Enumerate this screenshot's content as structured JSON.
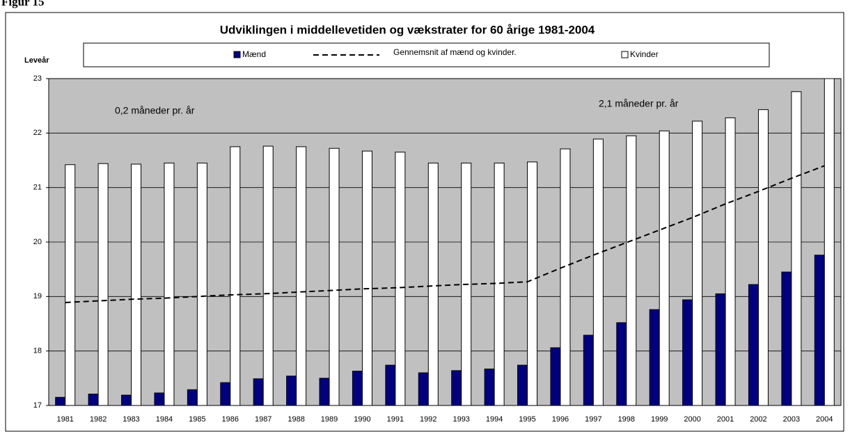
{
  "figure_label": "Figur 15",
  "chart_data": {
    "type": "bar",
    "title": "Udviklingen i middellevetiden og vækstrater for 60 årige 1981-2004",
    "y_label": "Leveår",
    "annotations": [
      "0,2 måneder pr. år",
      "2,1 måneder pr. år"
    ],
    "categories": [
      "1981",
      "1982",
      "1983",
      "1984",
      "1985",
      "1986",
      "1987",
      "1988",
      "1989",
      "1990",
      "1991",
      "1992",
      "1993",
      "1994",
      "1995",
      "1996",
      "1997",
      "1998",
      "1999",
      "2000",
      "2001",
      "2002",
      "2003",
      "2004"
    ],
    "series": [
      {
        "name": "Mænd",
        "type": "bar",
        "color": "#000080",
        "values": [
          17.15,
          17.21,
          17.19,
          17.23,
          17.29,
          17.42,
          17.49,
          17.54,
          17.5,
          17.63,
          17.74,
          17.6,
          17.64,
          17.67,
          17.74,
          18.06,
          18.29,
          18.52,
          18.76,
          18.94,
          19.05,
          19.22,
          19.45,
          19.76
        ]
      },
      {
        "name": "Gennemsnit af mænd og kvinder.",
        "type": "line",
        "dash": true,
        "color": "#000000",
        "values": [
          18.89,
          18.92,
          18.95,
          18.97,
          19.0,
          19.03,
          19.05,
          19.08,
          19.11,
          19.14,
          19.16,
          19.19,
          19.22,
          19.24,
          19.27,
          19.52,
          19.76,
          19.99,
          20.22,
          20.45,
          20.7,
          20.93,
          21.17,
          21.4
        ]
      },
      {
        "name": "Kvinder",
        "type": "bar",
        "color": "#ffffff",
        "values": [
          21.42,
          21.44,
          21.43,
          21.45,
          21.45,
          21.75,
          21.76,
          21.75,
          21.72,
          21.67,
          21.65,
          21.45,
          21.45,
          21.45,
          21.47,
          21.71,
          21.89,
          21.95,
          22.04,
          22.22,
          22.28,
          22.43,
          22.76,
          23.0
        ]
      }
    ],
    "ylim": [
      17,
      23
    ],
    "yticks": [
      17,
      18,
      19,
      20,
      21,
      22,
      23
    ],
    "grid": true,
    "legend": "top",
    "plot_background": "#c0c0c0"
  }
}
